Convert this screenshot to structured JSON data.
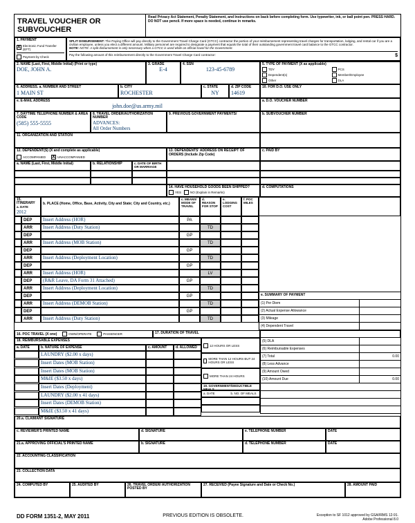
{
  "form": {
    "title": "TRAVEL VOUCHER OR SUBVOUCHER",
    "instructions": "Read Privacy Act Statement, Penalty Statement, and Instructions on back before completing form. Use typewriter, ink, or ball point pen. PRESS HARD. DO NOT use pencil. If more space is needed, continue in remarks.",
    "number": "DD FORM 1351-2, MAY 2011",
    "obsolete": "PREVIOUS EDITION IS OBSOLETE.",
    "exception": "Exception to SF 1012 approved by GSA/IRMS 12-91.",
    "adobe": "Adobe Professional 8.0"
  },
  "payment": {
    "label1": "1. PAYMENT",
    "eft": "Electronic Fund Transfer (EFT)",
    "split_hdr": "SPLIT DISBURSEMENT:",
    "split_text": "The Paying Office will pay directly to the Government Travel Charge Card (GTCC) contractor the portion of your reimbursement representing travel charges for transportation, lodging, and rental car if you are a civilian employee, unless you elect a different amount. Military personnel are required to designate a payment that equals the total of their outstanding government travel card balance to the GTCC contractor.",
    "split_note": "NOTE: A split disbursement is only necessary when a GTCC is used while on official travel for the Government.",
    "check": "Payment by Check",
    "check_text": "Pay the following amount of this reimbursement directly to the Government Travel Charge Card contractor:",
    "dollar": "$"
  },
  "fields": {
    "name_label": "2. NAME (Last, First, Middle Initial) (Print or type)",
    "name": "DOE, JOHN A.",
    "grade_label": "3. GRADE",
    "grade": "E-4",
    "ssn_label": "4. SSN",
    "ssn": "123-45-6789",
    "type_label": "5. TYPE OF PAYMENT (X as applicable)",
    "addr_label": "6. ADDRESS. a. NUMBER AND STREET",
    "addr": "1 MAIN ST",
    "city_label": "b. CITY",
    "city": "ROCHESTER",
    "state_label": "c. STATE",
    "state": "NY",
    "zip_label": "d. ZIP CODE",
    "zip": "14619",
    "email_label": "e. E-MAIL ADDRESS",
    "email": "john.doe@us.army.mil",
    "phone_label": "7. DAYTIME TELEPHONE NUMBER & AREA CODE",
    "phone": "(585) 555-5555",
    "auth_label": "8. TRAVEL ORDER/AUTHORIZATION NUMBER",
    "auth": "ADVANCES:\nAll Order Numbers",
    "prev_label": "9. PREVIOUS GOVERNMENT PAYMENTS/",
    "do_label": "10. FOR D.O. USE ONLY",
    "do_a": "a. D.O. VOUCHER NUMBER",
    "do_b": "b. SUBVOUCHER NUMBER",
    "org_label": "11. ORGANIZATION AND STATION",
    "dep_label": "12. DEPENDENT(S) (X and complete as applicable)",
    "accomp": "ACCOMPANIED",
    "unaccomp": "UNACCOMPANIED",
    "dep_name": "a. NAME (Last, First, Middle Initial)",
    "dep_rel": "b. RELATIONSHIP",
    "dep_date": "c. DATE OF BIRTH OR MARRIAGE",
    "dep_addr_label": "13. DEPENDENTS' ADDRESS ON RECEIPT OF ORDERS (Include Zip Code)",
    "paid_label": "c. PAID BY",
    "hhg_label": "14. HAVE HOUSEHOLD GOODS BEEN SHIPPED?",
    "yes": "YES",
    "no": "NO (Explain in Remarks)",
    "comp_label": "d. COMPUTATIONS"
  },
  "itin": {
    "label": "15. ITINERARY",
    "date_label": "a. DATE",
    "year": "2012",
    "place_label": "b. PLACE (Home, Office, Base, Activity, City and State; City and Country, etc.)",
    "means_label": "c. MEANS/ MODE OF TRAVEL",
    "reason_label": "d. REASON FOR STOP",
    "lodging_label": "e. LODGING COST",
    "poc_label": "f. POC MILES",
    "rows": [
      {
        "t": "DEP",
        "a": "Insert Address (HOR)",
        "m": "PA",
        "r": ""
      },
      {
        "t": "ARR",
        "a": "Insert Address (Duty Station)",
        "m": "",
        "r": "TD"
      },
      {
        "t": "DEP",
        "a": "",
        "m": "GP",
        "r": ""
      },
      {
        "t": "ARR",
        "a": "Insert Address (MOB Station)",
        "m": "",
        "r": "TD"
      },
      {
        "t": "DEP",
        "a": "",
        "m": "GP",
        "r": ""
      },
      {
        "t": "ARR",
        "a": "Insert Address (Deployment Location)",
        "m": "",
        "r": "TD"
      },
      {
        "t": "DEP",
        "a": "",
        "m": "GP",
        "r": ""
      },
      {
        "t": "ARR",
        "a": "Insert Address (HOR)",
        "m": "",
        "r": "LV"
      },
      {
        "t": "DEP",
        "a": "(R&R Leave, DA Form 31 Attached)",
        "m": "GP",
        "r": ""
      },
      {
        "t": "ARR",
        "a": "Insert Address (Deployment Location)",
        "m": "",
        "r": "TD"
      },
      {
        "t": "DEP",
        "a": "",
        "m": "GP",
        "r": ""
      },
      {
        "t": "ARR",
        "a": "Insert Address (DEMOB Station)",
        "m": "",
        "r": "TD"
      },
      {
        "t": "DEP",
        "a": "",
        "m": "GP",
        "r": ""
      },
      {
        "t": "ARR",
        "a": "Insert Address (Duty Station)",
        "m": "",
        "r": "TD"
      }
    ]
  },
  "poc": {
    "label": "16. POC TRAVEL (X one)",
    "own": "OWN/OPERATE",
    "pass": "PASSENGER"
  },
  "dur": {
    "label": "17. DURATION OF TRAVEL",
    "a": "12 HOURS OR LESS",
    "b": "MORE THAN 12 HOURS BUT 24 HOURS OR LESS",
    "c": "MORE THAN 24 HOURS"
  },
  "reimb": {
    "label": "18. REIMBURSABLE EXPENSES",
    "date": "a. DATE",
    "nature": "b. NATURE OF EXPENSE",
    "amount": "c. AMOUNT",
    "allowed": "d. ALLOWED",
    "rows": [
      "LAUNDRY ($2.00 x days)",
      "Insert Dates (MOB Station)",
      "Insert Dates (MOB Station)",
      "M&IE ($3.50 x days)",
      "Insert Dates (Deployment)",
      "LAUNDRY ($2.00 x 41 days)",
      "Insert Dates (DEMOB Station)",
      "M&IE ($3.50 x 41 days)"
    ]
  },
  "summary": {
    "label": "e. SUMMARY OF PAYMENT",
    "rows": [
      "(1) Per Diem",
      "(2) Actual Expense Allowance",
      "(3) Mileage",
      "(4) Dependent Travel",
      "(5) DLA",
      "(6) Reimbursable Expenses",
      "(7) Total",
      "(8) Less Advance",
      "(9) Amount Owed",
      "(10) Amount Due"
    ],
    "total": "0.00",
    "due": "0.00"
  },
  "meals": {
    "label": "19. GOVERNMENT/DEDUCTIBLE MEALS",
    "date": "a. DATE",
    "no": "b. NO. OF MEALS"
  },
  "sig": {
    "claimant": "20.a. CLAIMANT SIGNATURE",
    "rev_name": "c. REVIEWER'S PRINTED NAME",
    "rev_sig": "d. SIGNATURE",
    "rev_tel": "e. TELEPHONE NUMBER",
    "rev_date": "DATE",
    "app_name": "21.a. APPROVING OFFICIAL'S PRINTED NAME",
    "app_sig": "b. SIGNATURE",
    "app_tel": "d. TELEPHONE NUMBER",
    "acct": "22. ACCOUNTING CLASSIFICATION",
    "coll": "23. COLLECTION DATA",
    "comp": "24. COMPUTED BY",
    "aud": "25. AUDITED BY",
    "auth": "26. TRAVEL ORDER/ AUTHORIZATION POSTED BY",
    "recv": "27. RECEIVED (Payee Signature and Date or Check No.)",
    "paid": "28. AMOUNT PAID"
  },
  "pay_types": [
    "TDY",
    "PCS",
    "Dependent(s)",
    "Member/Employee",
    "Other",
    "DLA"
  ]
}
